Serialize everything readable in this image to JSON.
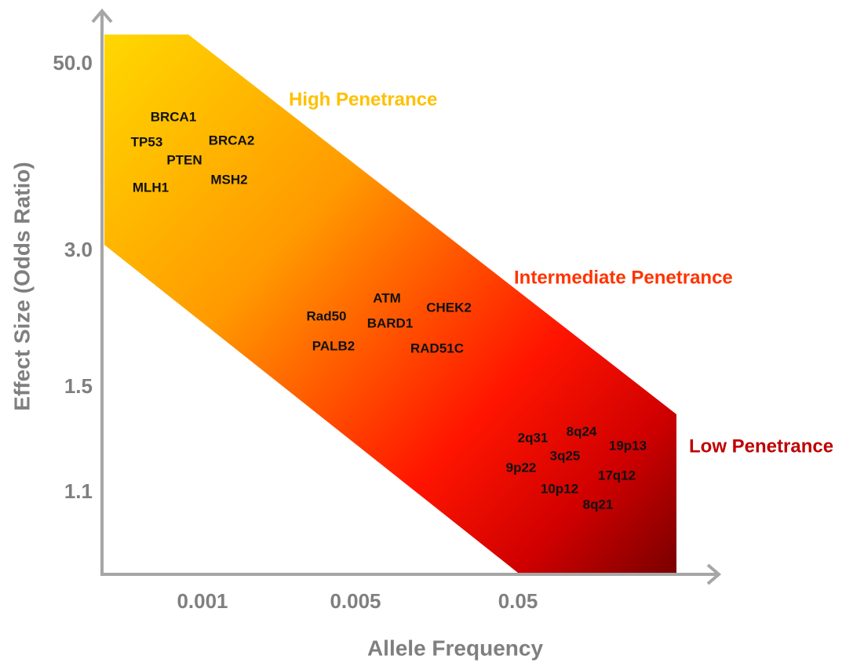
{
  "axes": {
    "y_title": "Effect Size (Odds Ratio)",
    "x_title": "Allele Frequency",
    "y_ticks": [
      "50.0",
      "3.0",
      "1.5",
      "1.1"
    ],
    "x_ticks": [
      "0.001",
      "0.005",
      "0.05"
    ]
  },
  "regions": [
    "High Penetrance",
    "Intermediate Penetrance",
    "Low Penetrance"
  ],
  "genes": [
    "BRCA1",
    "TP53",
    "BRCA2",
    "PTEN",
    "MLH1",
    "MSH2",
    "ATM",
    "CHEK2",
    "Rad50",
    "BARD1",
    "PALB2",
    "RAD51C",
    "2q31",
    "8q24",
    "19p13",
    "3q25",
    "9p22",
    "17q12",
    "10p12",
    "8q21"
  ]
}
